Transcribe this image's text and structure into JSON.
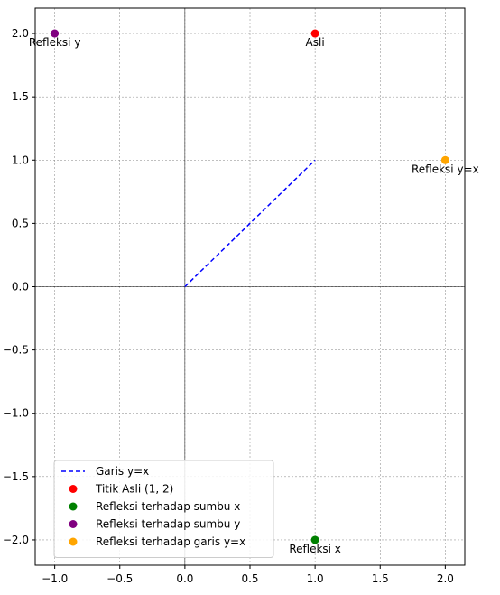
{
  "chart_data": {
    "type": "scatter",
    "xlim": [
      -1.15,
      2.15
    ],
    "ylim": [
      -2.2,
      2.2
    ],
    "x_ticks": [
      -1.0,
      -0.5,
      0.0,
      0.5,
      1.0,
      1.5,
      2.0
    ],
    "x_tick_labels": [
      "−1.0",
      "−0.5",
      "0.0",
      "0.5",
      "1.0",
      "1.5",
      "2.0"
    ],
    "y_ticks": [
      -2.0,
      -1.5,
      -1.0,
      -0.5,
      0.0,
      0.5,
      1.0,
      1.5,
      2.0
    ],
    "y_tick_labels": [
      "−2.0",
      "−1.5",
      "−1.0",
      "−0.5",
      "0.0",
      "0.5",
      "1.0",
      "1.5",
      "2.0"
    ],
    "grid": true,
    "legend_placement": "lower-left",
    "line": {
      "name": "Garis y=x",
      "x": [
        0,
        1
      ],
      "y": [
        0,
        1
      ],
      "color": "#0000ff",
      "style": "dashed"
    },
    "points": [
      {
        "name": "Titik Asli (1, 2)",
        "x": 1,
        "y": 2,
        "color": "#ff0000",
        "label": "Asli"
      },
      {
        "name": "Refleksi terhadap sumbu x",
        "x": 1,
        "y": -2,
        "color": "#008000",
        "label": "Refleksi x"
      },
      {
        "name": "Refleksi terhadap sumbu y",
        "x": -1,
        "y": 2,
        "color": "#800080",
        "label": "Refleksi y"
      },
      {
        "name": "Refleksi terhadap garis y=x",
        "x": 2,
        "y": 1,
        "color": "#ffa500",
        "label": "Refleksi y=x"
      }
    ]
  }
}
